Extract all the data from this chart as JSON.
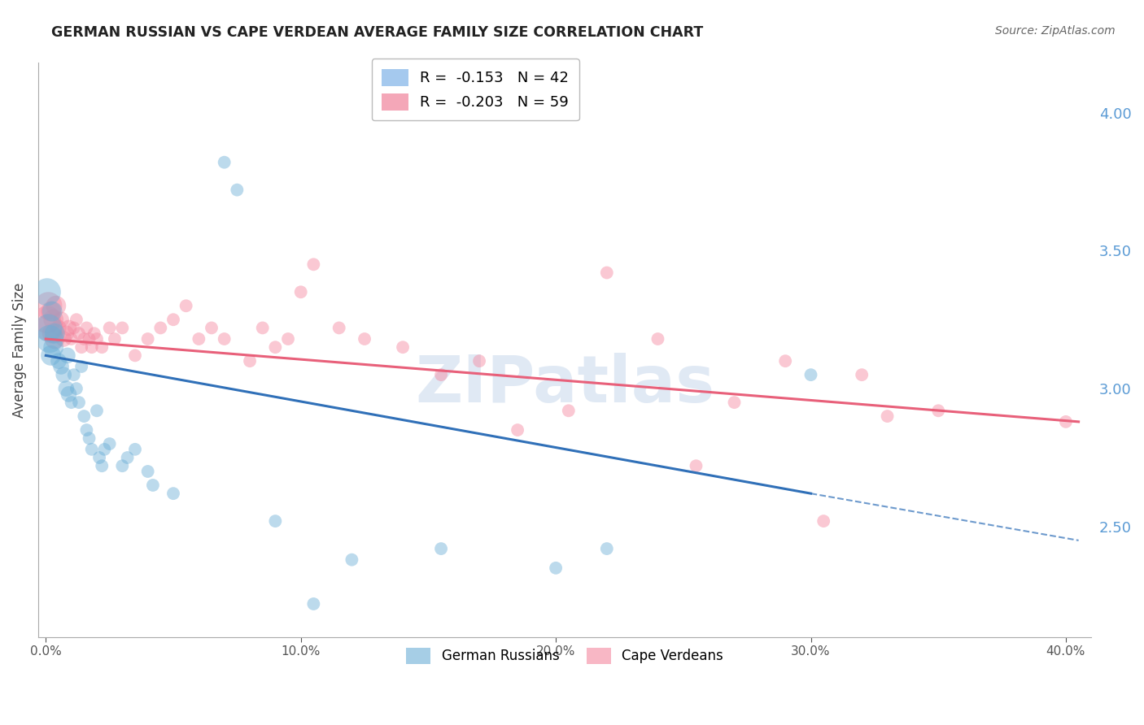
{
  "title": "GERMAN RUSSIAN VS CAPE VERDEAN AVERAGE FAMILY SIZE CORRELATION CHART",
  "source_text": "Source: ZipAtlas.com",
  "ylabel": "Average Family Size",
  "xlabel_ticks": [
    "0.0%",
    "10.0%",
    "20.0%",
    "30.0%",
    "40.0%"
  ],
  "xlabel_vals": [
    0.0,
    10.0,
    20.0,
    30.0,
    40.0
  ],
  "right_yticks": [
    2.5,
    3.0,
    3.5,
    4.0
  ],
  "ylim": [
    2.1,
    4.18
  ],
  "xlim": [
    -0.3,
    41.0
  ],
  "watermark": "ZIPatlas",
  "legend_entries": [
    {
      "label": "R =  -0.153   N = 42",
      "color": "#7fb3e8"
    },
    {
      "label": "R =  -0.203   N = 59",
      "color": "#f0829a"
    }
  ],
  "legend_labels_bottom": [
    "German Russians",
    "Cape Verdeans"
  ],
  "blue_color": "#6baed6",
  "pink_color": "#f4879f",
  "blue_line_color": "#3070b8",
  "pink_line_color": "#e8607a",
  "right_axis_color": "#5b9bd5",
  "german_russian_x": [
    0.05,
    0.1,
    0.15,
    0.2,
    0.25,
    0.3,
    0.35,
    0.5,
    0.6,
    0.7,
    0.8,
    0.85,
    0.9,
    1.0,
    1.1,
    1.2,
    1.3,
    1.4,
    1.5,
    1.6,
    1.7,
    1.8,
    2.0,
    2.1,
    2.2,
    2.3,
    2.5,
    3.0,
    3.2,
    3.5,
    4.0,
    4.2,
    5.0,
    7.0,
    7.5,
    9.0,
    10.5,
    12.0,
    15.5,
    20.0,
    22.0,
    30.0
  ],
  "german_russian_y": [
    3.35,
    3.22,
    3.18,
    3.12,
    3.28,
    3.15,
    3.2,
    3.1,
    3.08,
    3.05,
    3.0,
    3.12,
    2.98,
    2.95,
    3.05,
    3.0,
    2.95,
    3.08,
    2.9,
    2.85,
    2.82,
    2.78,
    2.92,
    2.75,
    2.72,
    2.78,
    2.8,
    2.72,
    2.75,
    2.78,
    2.7,
    2.65,
    2.62,
    3.82,
    3.72,
    2.52,
    2.22,
    2.38,
    2.42,
    2.35,
    2.42,
    3.05
  ],
  "cape_verdean_x": [
    0.05,
    0.1,
    0.15,
    0.2,
    0.25,
    0.3,
    0.35,
    0.4,
    0.5,
    0.6,
    0.7,
    0.8,
    0.9,
    1.0,
    1.1,
    1.2,
    1.3,
    1.4,
    1.5,
    1.6,
    1.7,
    1.8,
    1.9,
    2.0,
    2.2,
    2.5,
    2.7,
    3.0,
    3.5,
    4.0,
    4.5,
    5.0,
    5.5,
    6.0,
    6.5,
    7.0,
    8.0,
    8.5,
    9.0,
    9.5,
    10.0,
    10.5,
    11.5,
    12.5,
    14.0,
    15.5,
    17.0,
    18.5,
    20.5,
    22.0,
    24.0,
    25.5,
    27.0,
    29.0,
    30.5,
    32.0,
    33.0,
    35.0,
    40.0
  ],
  "cape_verdean_y": [
    3.25,
    3.3,
    3.22,
    3.28,
    3.2,
    3.25,
    3.18,
    3.3,
    3.22,
    3.25,
    3.18,
    3.2,
    3.22,
    3.18,
    3.22,
    3.25,
    3.2,
    3.15,
    3.18,
    3.22,
    3.18,
    3.15,
    3.2,
    3.18,
    3.15,
    3.22,
    3.18,
    3.22,
    3.12,
    3.18,
    3.22,
    3.25,
    3.3,
    3.18,
    3.22,
    3.18,
    3.1,
    3.22,
    3.15,
    3.18,
    3.35,
    3.45,
    3.22,
    3.18,
    3.15,
    3.05,
    3.1,
    2.85,
    2.92,
    3.42,
    3.18,
    2.72,
    2.95,
    3.1,
    2.52,
    3.05,
    2.9,
    2.92,
    2.88
  ],
  "blue_line": {
    "x0": 0.0,
    "x1": 30.0,
    "y0": 3.12,
    "y1": 2.62
  },
  "blue_line_dash": {
    "x0": 30.0,
    "x1": 40.5,
    "y0": 2.62,
    "y1": 2.45
  },
  "pink_line": {
    "x0": 0.0,
    "x1": 40.5,
    "y0": 3.18,
    "y1": 2.88
  },
  "circle_size": 130,
  "big_circle_size": 600,
  "grid_color": "#cccccc",
  "bg_color": "#ffffff"
}
